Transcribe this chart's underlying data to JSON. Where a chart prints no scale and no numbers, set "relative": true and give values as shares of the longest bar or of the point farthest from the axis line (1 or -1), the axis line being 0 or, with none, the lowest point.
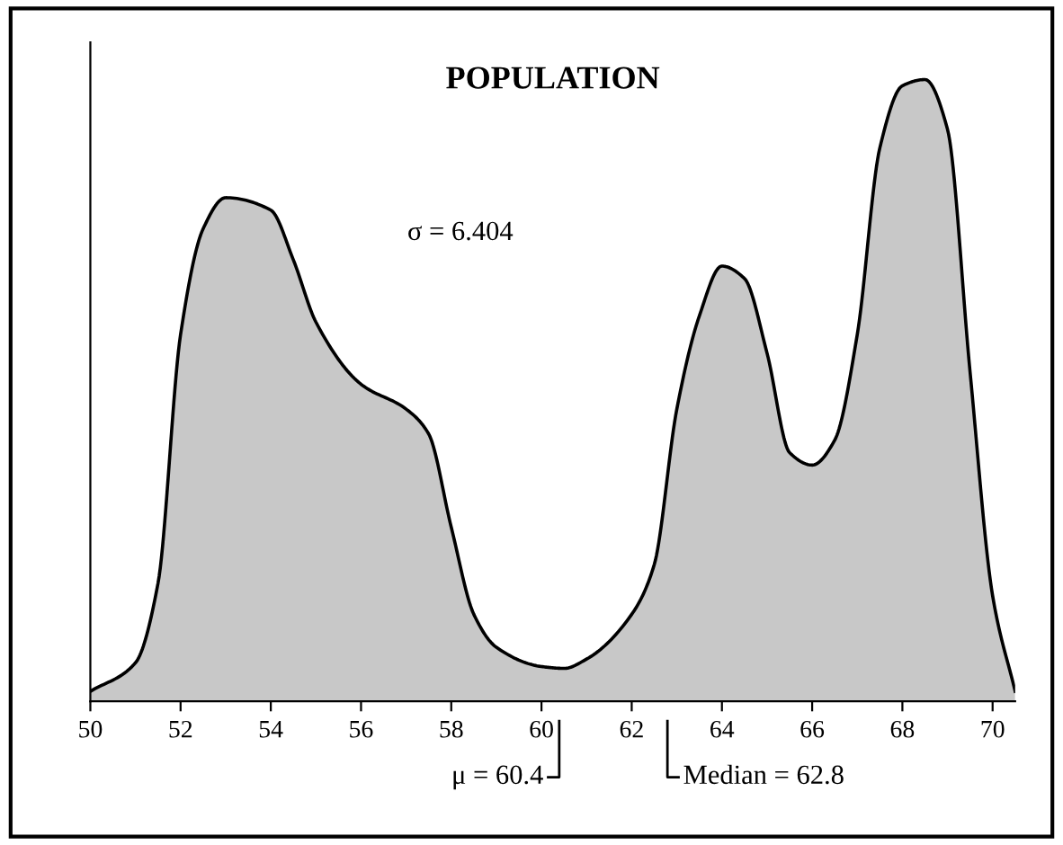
{
  "chart_data": {
    "type": "area",
    "title": "POPULATION",
    "relative": true,
    "x": [
      50,
      51,
      51.5,
      52,
      52.5,
      53,
      54,
      54.5,
      55,
      56,
      57,
      57.5,
      58,
      58.5,
      59,
      60,
      60.5,
      61,
      62,
      62.5,
      63,
      63.5,
      64,
      64.5,
      65,
      65.5,
      66,
      66.5,
      67,
      67.5,
      68,
      68.5,
      69,
      69.5,
      70,
      70.5
    ],
    "values": [
      0.016,
      0.062,
      0.19,
      0.59,
      0.76,
      0.81,
      0.79,
      0.71,
      0.61,
      0.51,
      0.47,
      0.43,
      0.28,
      0.14,
      0.087,
      0.056,
      0.053,
      0.068,
      0.14,
      0.22,
      0.47,
      0.62,
      0.7,
      0.68,
      0.56,
      0.4,
      0.38,
      0.42,
      0.59,
      0.89,
      0.99,
      1,
      0.92,
      0.53,
      0.17,
      0.016
    ],
    "color": "#c8c8c8",
    "xlim": [
      50,
      70.5
    ],
    "xticks": [
      50,
      52,
      54,
      56,
      58,
      60,
      62,
      64,
      66,
      68,
      70
    ],
    "annotations": [
      "σ = 6.404",
      "μ = 60.4",
      "Median = 62.8"
    ],
    "grid": false
  }
}
